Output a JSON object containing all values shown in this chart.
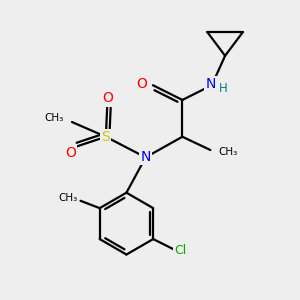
{
  "bg_color": "#eeeeee",
  "bond_color": "#000000",
  "bond_width": 1.6,
  "atom_colors": {
    "N": "#0000ff",
    "O": "#ff0000",
    "S": "#cccc00",
    "Cl": "#00aa00",
    "C": "#000000",
    "H": "#008080"
  },
  "font_size": 9,
  "fig_size": [
    3.0,
    3.0
  ],
  "dpi": 100,
  "xlim": [
    0,
    10
  ],
  "ylim": [
    0,
    10
  ]
}
